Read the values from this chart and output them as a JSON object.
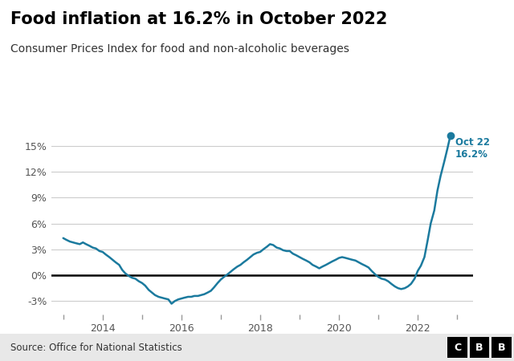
{
  "title": "Food inflation at 16.2% in October 2022",
  "subtitle": "Consumer Prices Index for food and non-alcoholic beverages",
  "source": "Source: Office for National Statistics",
  "line_color": "#1b7a9e",
  "annotation_color": "#1b7a9e",
  "zero_line_color": "#000000",
  "grid_color": "#cccccc",
  "background_color": "#ffffff",
  "footer_bg": "#e8e8e8",
  "annotation_line1": "Oct 22",
  "annotation_line2": "16.2%",
  "yticks": [
    -3,
    0,
    3,
    6,
    9,
    12,
    15
  ],
  "ylim": [
    -4.5,
    18.5
  ],
  "xlim": [
    2012.7,
    2023.4
  ],
  "xtick_major": [
    2014,
    2016,
    2018,
    2020,
    2022
  ],
  "xtick_minor": [
    2013,
    2015,
    2017,
    2019,
    2021,
    2023
  ],
  "data": [
    [
      2013.0,
      4.3
    ],
    [
      2013.08,
      4.1
    ],
    [
      2013.17,
      3.9
    ],
    [
      2013.25,
      3.8
    ],
    [
      2013.33,
      3.7
    ],
    [
      2013.42,
      3.6
    ],
    [
      2013.5,
      3.8
    ],
    [
      2013.58,
      3.6
    ],
    [
      2013.67,
      3.4
    ],
    [
      2013.75,
      3.2
    ],
    [
      2013.83,
      3.1
    ],
    [
      2013.92,
      2.8
    ],
    [
      2014.0,
      2.7
    ],
    [
      2014.08,
      2.4
    ],
    [
      2014.17,
      2.1
    ],
    [
      2014.25,
      1.8
    ],
    [
      2014.33,
      1.5
    ],
    [
      2014.42,
      1.2
    ],
    [
      2014.5,
      0.6
    ],
    [
      2014.58,
      0.2
    ],
    [
      2014.67,
      -0.1
    ],
    [
      2014.75,
      -0.3
    ],
    [
      2014.83,
      -0.4
    ],
    [
      2014.92,
      -0.7
    ],
    [
      2015.0,
      -0.9
    ],
    [
      2015.08,
      -1.2
    ],
    [
      2015.17,
      -1.7
    ],
    [
      2015.25,
      -2.0
    ],
    [
      2015.33,
      -2.3
    ],
    [
      2015.42,
      -2.5
    ],
    [
      2015.5,
      -2.6
    ],
    [
      2015.58,
      -2.7
    ],
    [
      2015.67,
      -2.8
    ],
    [
      2015.75,
      -3.3
    ],
    [
      2015.83,
      -3.0
    ],
    [
      2015.92,
      -2.8
    ],
    [
      2016.0,
      -2.7
    ],
    [
      2016.08,
      -2.6
    ],
    [
      2016.17,
      -2.5
    ],
    [
      2016.25,
      -2.5
    ],
    [
      2016.33,
      -2.4
    ],
    [
      2016.42,
      -2.4
    ],
    [
      2016.5,
      -2.3
    ],
    [
      2016.58,
      -2.2
    ],
    [
      2016.67,
      -2.0
    ],
    [
      2016.75,
      -1.8
    ],
    [
      2016.83,
      -1.4
    ],
    [
      2016.92,
      -0.9
    ],
    [
      2017.0,
      -0.5
    ],
    [
      2017.08,
      -0.2
    ],
    [
      2017.17,
      0.1
    ],
    [
      2017.25,
      0.4
    ],
    [
      2017.33,
      0.7
    ],
    [
      2017.42,
      1.0
    ],
    [
      2017.5,
      1.2
    ],
    [
      2017.58,
      1.5
    ],
    [
      2017.67,
      1.8
    ],
    [
      2017.75,
      2.1
    ],
    [
      2017.83,
      2.4
    ],
    [
      2017.92,
      2.6
    ],
    [
      2018.0,
      2.7
    ],
    [
      2018.08,
      3.0
    ],
    [
      2018.17,
      3.3
    ],
    [
      2018.25,
      3.6
    ],
    [
      2018.33,
      3.5
    ],
    [
      2018.42,
      3.2
    ],
    [
      2018.5,
      3.1
    ],
    [
      2018.58,
      2.9
    ],
    [
      2018.67,
      2.8
    ],
    [
      2018.75,
      2.8
    ],
    [
      2018.83,
      2.5
    ],
    [
      2018.92,
      2.3
    ],
    [
      2019.0,
      2.1
    ],
    [
      2019.08,
      1.9
    ],
    [
      2019.17,
      1.7
    ],
    [
      2019.25,
      1.5
    ],
    [
      2019.33,
      1.2
    ],
    [
      2019.42,
      1.0
    ],
    [
      2019.5,
      0.8
    ],
    [
      2019.58,
      1.0
    ],
    [
      2019.67,
      1.2
    ],
    [
      2019.75,
      1.4
    ],
    [
      2019.83,
      1.6
    ],
    [
      2019.92,
      1.8
    ],
    [
      2020.0,
      2.0
    ],
    [
      2020.08,
      2.1
    ],
    [
      2020.17,
      2.0
    ],
    [
      2020.25,
      1.9
    ],
    [
      2020.33,
      1.8
    ],
    [
      2020.42,
      1.7
    ],
    [
      2020.5,
      1.5
    ],
    [
      2020.58,
      1.3
    ],
    [
      2020.67,
      1.1
    ],
    [
      2020.75,
      0.9
    ],
    [
      2020.83,
      0.5
    ],
    [
      2020.92,
      0.1
    ],
    [
      2021.0,
      -0.2
    ],
    [
      2021.08,
      -0.4
    ],
    [
      2021.17,
      -0.5
    ],
    [
      2021.25,
      -0.7
    ],
    [
      2021.33,
      -1.0
    ],
    [
      2021.42,
      -1.3
    ],
    [
      2021.5,
      -1.5
    ],
    [
      2021.58,
      -1.6
    ],
    [
      2021.67,
      -1.5
    ],
    [
      2021.75,
      -1.3
    ],
    [
      2021.83,
      -1.0
    ],
    [
      2021.92,
      -0.4
    ],
    [
      2022.0,
      0.5
    ],
    [
      2022.08,
      1.1
    ],
    [
      2022.17,
      2.1
    ],
    [
      2022.25,
      4.0
    ],
    [
      2022.33,
      6.0
    ],
    [
      2022.42,
      7.5
    ],
    [
      2022.5,
      9.8
    ],
    [
      2022.58,
      11.5
    ],
    [
      2022.67,
      13.1
    ],
    [
      2022.75,
      14.6
    ],
    [
      2022.83,
      16.2
    ]
  ]
}
